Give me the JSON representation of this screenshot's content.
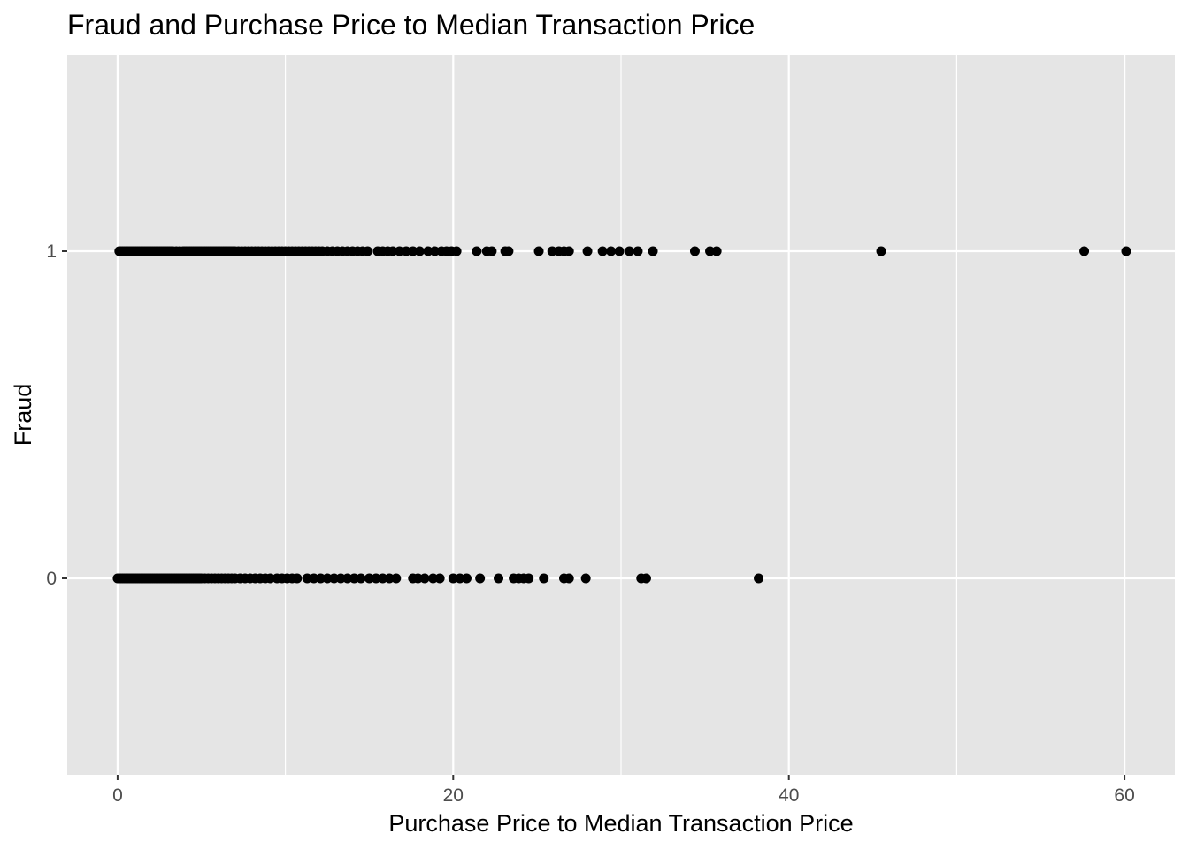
{
  "chart_data": {
    "type": "scatter",
    "title": "Fraud and Purchase Price to Median Transaction Price",
    "xlabel": "Purchase Price to Median Transaction Price",
    "ylabel": "Fraud",
    "xlim": [
      -3,
      63
    ],
    "ylim": [
      -0.6,
      1.6
    ],
    "x_ticks": [
      0,
      20,
      40,
      60
    ],
    "x_minor_ticks": [
      10,
      30,
      50
    ],
    "y_ticks": [
      0,
      1
    ],
    "grid": true,
    "legend": "none",
    "point_color": "#000000",
    "panel_background": "#e5e5e5",
    "grid_color": "#ffffff",
    "series": [
      {
        "y": 1,
        "x": [
          0.1,
          0.2,
          0.3,
          0.4,
          0.5,
          0.6,
          0.7,
          0.8,
          0.9,
          1.0,
          1.1,
          1.2,
          1.3,
          1.4,
          1.5,
          1.6,
          1.7,
          1.8,
          1.9,
          2.0,
          2.1,
          2.2,
          2.3,
          2.4,
          2.5,
          2.6,
          2.7,
          2.8,
          2.9,
          3.0,
          3.1,
          3.2,
          3.3,
          3.5,
          3.7,
          3.9,
          4.0,
          4.1,
          4.2,
          4.3,
          4.4,
          4.5,
          4.6,
          4.7,
          4.8,
          4.9,
          5.0,
          5.1,
          5.2,
          5.3,
          5.4,
          5.5,
          5.6,
          5.7,
          5.8,
          5.9,
          6.0,
          6.1,
          6.2,
          6.3,
          6.4,
          6.5,
          6.6,
          6.7,
          6.8,
          6.9,
          7.0,
          7.2,
          7.4,
          7.6,
          7.8,
          8.0,
          8.2,
          8.4,
          8.6,
          8.8,
          9.0,
          9.2,
          9.4,
          9.6,
          9.8,
          10.0,
          10.2,
          10.4,
          10.6,
          10.8,
          11.0,
          11.2,
          11.4,
          11.6,
          11.8,
          12.0,
          12.2,
          12.5,
          12.8,
          13.1,
          13.4,
          13.7,
          14.0,
          14.3,
          14.6,
          14.9,
          15.5,
          15.8,
          16.1,
          16.4,
          16.8,
          17.2,
          17.6,
          18.0,
          18.5,
          18.9,
          19.3,
          19.6,
          19.9,
          20.2,
          21.4,
          22.0,
          22.3,
          23.1,
          23.3,
          25.1,
          25.9,
          26.3,
          26.6,
          26.9,
          28.0,
          28.9,
          29.4,
          29.9,
          30.5,
          31.0,
          31.9,
          34.4,
          35.3,
          35.7,
          45.5,
          57.6,
          60.1
        ]
      },
      {
        "y": 0,
        "x": [
          0.0,
          0.1,
          0.2,
          0.3,
          0.4,
          0.5,
          0.6,
          0.7,
          0.8,
          0.9,
          1.0,
          1.1,
          1.2,
          1.3,
          1.4,
          1.5,
          1.6,
          1.7,
          1.8,
          1.9,
          2.0,
          2.1,
          2.2,
          2.3,
          2.4,
          2.5,
          2.6,
          2.7,
          2.8,
          2.9,
          3.0,
          3.1,
          3.2,
          3.3,
          3.4,
          3.5,
          3.6,
          3.7,
          3.8,
          3.9,
          4.0,
          4.1,
          4.2,
          4.3,
          4.4,
          4.5,
          4.6,
          4.7,
          4.8,
          4.9,
          5.0,
          5.2,
          5.4,
          5.6,
          5.8,
          6.0,
          6.2,
          6.4,
          6.6,
          6.8,
          7.0,
          7.3,
          7.6,
          7.9,
          8.2,
          8.5,
          8.8,
          9.1,
          9.5,
          9.8,
          10.1,
          10.4,
          10.7,
          11.3,
          11.7,
          12.1,
          12.5,
          12.9,
          13.3,
          13.7,
          14.1,
          14.5,
          15.0,
          15.4,
          15.8,
          16.2,
          16.6,
          17.6,
          17.9,
          18.3,
          18.8,
          19.2,
          20.0,
          20.4,
          20.8,
          21.6,
          22.7,
          23.6,
          23.9,
          24.2,
          24.5,
          25.4,
          26.6,
          26.9,
          27.9,
          31.2,
          31.5,
          38.2
        ]
      }
    ]
  }
}
